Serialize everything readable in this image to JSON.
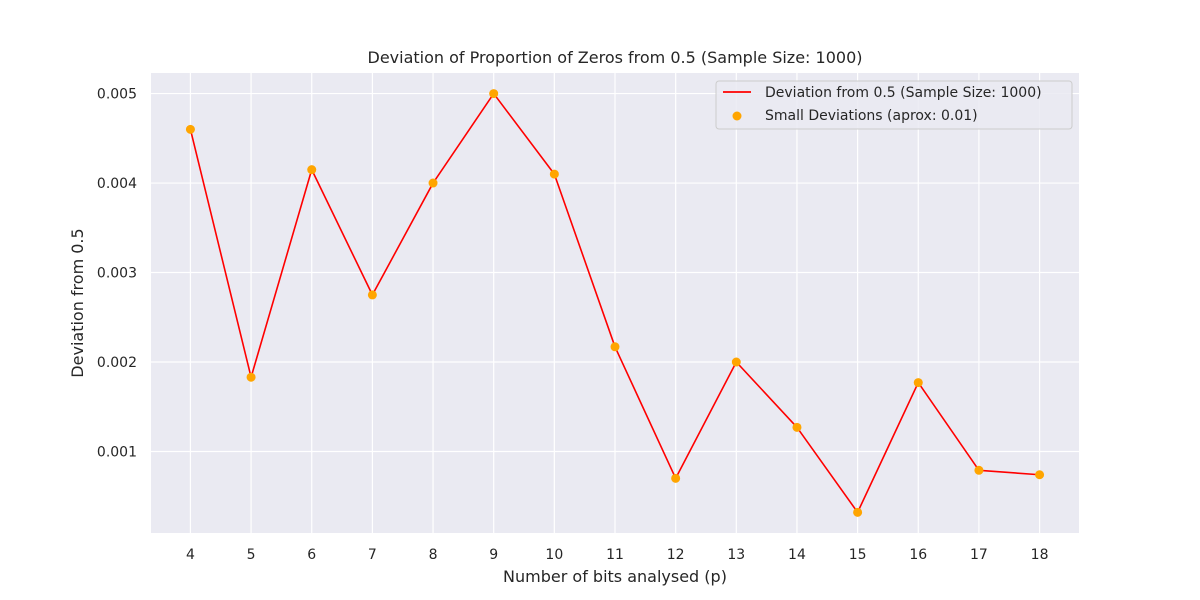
{
  "chart_data": {
    "type": "line",
    "title": "Deviation of Proportion of Zeros from 0.5 (Sample Size: 1000)",
    "xlabel": "Number of bits analysed (p)",
    "ylabel": "Deviation from 0.5",
    "x": [
      4,
      5,
      6,
      7,
      8,
      9,
      10,
      11,
      12,
      13,
      14,
      15,
      16,
      17,
      18
    ],
    "series": [
      {
        "name": "Deviation from 0.5 (Sample Size: 1000)",
        "kind": "line",
        "color": "#ff0000",
        "values": [
          0.0046,
          0.00183,
          0.00415,
          0.00275,
          0.004,
          0.005,
          0.0041,
          0.00217,
          0.0007,
          0.002,
          0.00127,
          0.00032,
          0.00177,
          0.00079,
          0.00074
        ]
      },
      {
        "name": "Small Deviations (aprox: 0.01)",
        "kind": "scatter",
        "color": "#ffa500",
        "values": [
          0.0046,
          0.00183,
          0.00415,
          0.00275,
          0.004,
          0.005,
          0.0041,
          0.00217,
          0.0007,
          0.002,
          0.00127,
          0.00032,
          0.00177,
          0.00079,
          0.00074
        ]
      }
    ],
    "xticks": [
      "4",
      "5",
      "6",
      "7",
      "8",
      "9",
      "10",
      "11",
      "12",
      "13",
      "14",
      "15",
      "16",
      "17",
      "18"
    ],
    "yticks": [
      "0.001",
      "0.002",
      "0.003",
      "0.004",
      "0.005"
    ],
    "xlim": [
      3.35,
      18.65
    ],
    "ylim": [
      8.9e-05,
      0.00523
    ],
    "grid": true,
    "legend_position": "top-right",
    "background": "#eaeaf2"
  }
}
